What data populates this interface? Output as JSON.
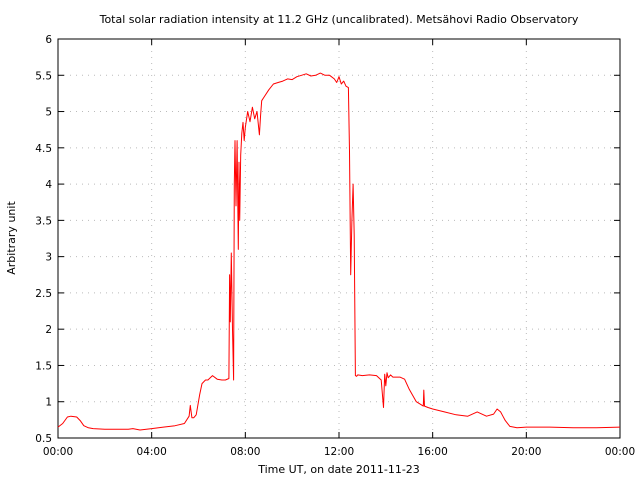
{
  "chart_data": {
    "type": "line",
    "title": "Total solar radiation intensity at 11.2 GHz (uncalibrated). Metsähovi Radio Observatory",
    "xlabel": "Time UT, on date 2011-11-23",
    "ylabel": "Arbitrary unit",
    "x_unit": "hours UT",
    "xlim": [
      0,
      24
    ],
    "ylim": [
      0.5,
      6
    ],
    "x_ticks": [
      0,
      4,
      8,
      12,
      16,
      20,
      24
    ],
    "x_tick_labels": [
      "00:00",
      "04:00",
      "08:00",
      "12:00",
      "16:00",
      "20:00",
      "00:00"
    ],
    "y_ticks": [
      0.5,
      1,
      1.5,
      2,
      2.5,
      3,
      3.5,
      4,
      4.5,
      5,
      5.5,
      6
    ],
    "y_tick_labels": [
      "0.5",
      "1",
      "1.5",
      "2",
      "2.5",
      "3",
      "3.5",
      "4",
      "4.5",
      "5",
      "5.5",
      "6"
    ],
    "grid": true,
    "line_color": "#ff0000",
    "series": [
      {
        "x": [
          0.0,
          0.2,
          0.4,
          0.55,
          0.8,
          0.95,
          1.1,
          1.3,
          1.5,
          2.0,
          2.5,
          3.0,
          3.2,
          3.5,
          4.0,
          4.5,
          5.0,
          5.4,
          5.6,
          5.65,
          5.72,
          5.8,
          5.9,
          6.05,
          6.15,
          6.3,
          6.4,
          6.6,
          6.8,
          7.0,
          7.15,
          7.3,
          7.33,
          7.36,
          7.4,
          7.45,
          7.5,
          7.53,
          7.56,
          7.6,
          7.65,
          7.7,
          7.73,
          7.76,
          7.8,
          7.85,
          7.9,
          7.95,
          8.0,
          8.1,
          8.2,
          8.3,
          8.4,
          8.5,
          8.6,
          8.65,
          8.7,
          8.8,
          9.0,
          9.2,
          9.4,
          9.6,
          9.8,
          10.0,
          10.2,
          10.4,
          10.6,
          10.8,
          11.0,
          11.2,
          11.4,
          11.6,
          11.8,
          11.9,
          12.0,
          12.1,
          12.2,
          12.3,
          12.4,
          12.45,
          12.5,
          12.55,
          12.6,
          12.65,
          12.7,
          12.75,
          12.8,
          13.0,
          13.3,
          13.6,
          13.8,
          13.9,
          13.95,
          14.0,
          14.05,
          14.1,
          14.2,
          14.3,
          14.6,
          14.8,
          15.0,
          15.3,
          15.6,
          15.62,
          15.65,
          15.8,
          16.0,
          16.5,
          17.0,
          17.5,
          17.9,
          18.3,
          18.6,
          18.75,
          18.9,
          19.0,
          19.1,
          19.3,
          19.6,
          20.0,
          21.0,
          22.0,
          23.0,
          24.0
        ],
        "y": [
          0.65,
          0.7,
          0.79,
          0.8,
          0.79,
          0.74,
          0.67,
          0.64,
          0.63,
          0.62,
          0.62,
          0.62,
          0.63,
          0.61,
          0.63,
          0.65,
          0.67,
          0.7,
          0.8,
          0.95,
          0.78,
          0.78,
          0.82,
          1.1,
          1.25,
          1.3,
          1.3,
          1.36,
          1.31,
          1.3,
          1.3,
          1.32,
          2.75,
          2.1,
          3.05,
          2.0,
          1.3,
          4.0,
          4.6,
          3.7,
          4.6,
          3.1,
          4.3,
          3.5,
          4.4,
          4.7,
          4.85,
          4.6,
          4.78,
          5.0,
          4.86,
          5.06,
          4.9,
          5.0,
          4.68,
          4.95,
          5.15,
          5.2,
          5.3,
          5.38,
          5.4,
          5.42,
          5.45,
          5.44,
          5.48,
          5.5,
          5.52,
          5.49,
          5.5,
          5.53,
          5.5,
          5.5,
          5.45,
          5.4,
          5.48,
          5.38,
          5.42,
          5.35,
          5.33,
          4.45,
          2.75,
          3.5,
          4.0,
          3.3,
          1.36,
          1.35,
          1.37,
          1.36,
          1.37,
          1.36,
          1.3,
          0.92,
          1.38,
          1.22,
          1.4,
          1.33,
          1.37,
          1.34,
          1.34,
          1.31,
          1.17,
          1.0,
          0.94,
          1.16,
          0.94,
          0.92,
          0.9,
          0.86,
          0.82,
          0.8,
          0.86,
          0.8,
          0.83,
          0.9,
          0.86,
          0.8,
          0.74,
          0.66,
          0.64,
          0.65,
          0.65,
          0.64,
          0.64,
          0.65
        ]
      }
    ]
  }
}
